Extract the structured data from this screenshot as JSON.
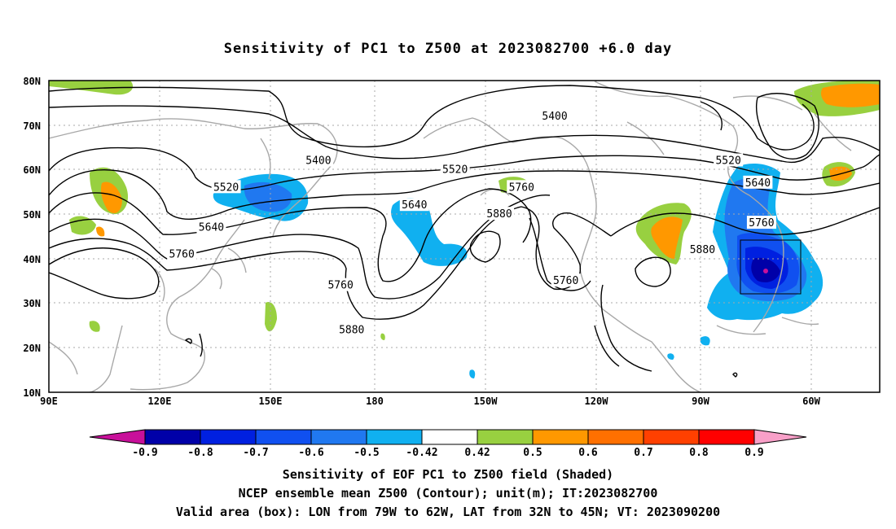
{
  "title": "Sensitivity of PC1 to Z500 at 2023082700 +6.0 day",
  "axes": {
    "lat_labels": [
      "80N",
      "70N",
      "60N",
      "50N",
      "40N",
      "30N",
      "20N",
      "10N"
    ],
    "lon_labels": [
      "90E",
      "120E",
      "150E",
      "180",
      "150W",
      "120W",
      "90W",
      "60W"
    ]
  },
  "contour_labels": [
    {
      "text": "5400",
      "lon": -133,
      "lat": 72
    },
    {
      "text": "5400",
      "lon": 163,
      "lat": 62
    },
    {
      "text": "5520",
      "lon": -86,
      "lat": 62
    },
    {
      "text": "5520",
      "lon": -160,
      "lat": 60
    },
    {
      "text": "5520",
      "lon": 138,
      "lat": 56
    },
    {
      "text": "5640",
      "lon": -78,
      "lat": 57
    },
    {
      "text": "5640",
      "lon": -171,
      "lat": 52
    },
    {
      "text": "5640",
      "lon": 134,
      "lat": 47
    },
    {
      "text": "5760",
      "lon": -142,
      "lat": 56
    },
    {
      "text": "5760",
      "lon": -77,
      "lat": 48
    },
    {
      "text": "5760",
      "lon": 126,
      "lat": 41
    },
    {
      "text": "5760",
      "lon": 169,
      "lat": 34
    },
    {
      "text": "5760",
      "lon": -130,
      "lat": 35
    },
    {
      "text": "5880",
      "lon": -148,
      "lat": 50
    },
    {
      "text": "5880",
      "lon": -93,
      "lat": 42
    },
    {
      "text": "5880",
      "lon": 172,
      "lat": 24
    }
  ],
  "colorbar": {
    "labels": [
      "-0.9",
      "-0.8",
      "-0.7",
      "-0.6",
      "-0.5",
      "-0.42",
      "0.42",
      "0.5",
      "0.6",
      "0.7",
      "0.8",
      "0.9"
    ],
    "colors": [
      "#0000a8",
      "#0020e0",
      "#1050f0",
      "#2078f0",
      "#10b0f0",
      "#ffffff",
      "#98d040",
      "#ff9800",
      "#ff7000",
      "#ff4000",
      "#ff0000"
    ],
    "low_tip_color": "#c8109a",
    "high_tip_color": "#f8a0c8"
  },
  "footer": {
    "line1": "Sensitivity of EOF PC1 to Z500 field (Shaded)",
    "line2": "NCEP ensemble mean Z500 (Contour); unit(m); IT:2023082700",
    "line3": "Valid area (box): LON from 79W to 62W, LAT from 32N to 45N; VT: 2023090200"
  }
}
